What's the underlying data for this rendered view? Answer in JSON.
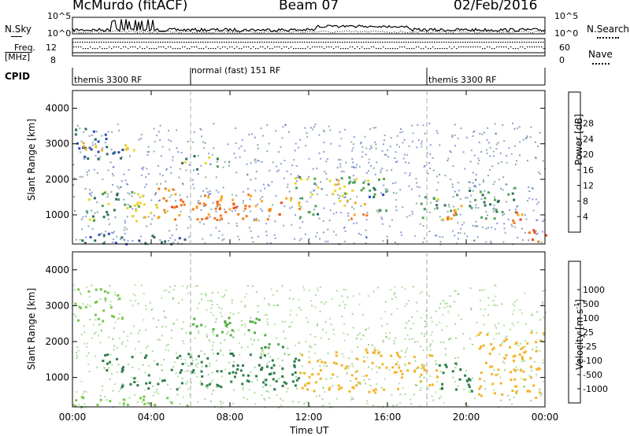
{
  "header": {
    "station": "McMurdo (fitACF)",
    "beam": "Beam 07",
    "date": "02/Feb/2016"
  },
  "params_panel": {
    "nsky_label": "N.Sky",
    "nsearch_label": "N.Search",
    "freq_label": "Freq.",
    "freq_unit": "[MHz]",
    "nave_label": "Nave",
    "cpid_label": "CPID",
    "left_ticks_top": [
      "10^5",
      "10^0"
    ],
    "right_ticks_top": [
      "10^5",
      "10^0"
    ],
    "left_ticks_freq": [
      "12",
      "8"
    ],
    "right_ticks_nave": [
      "60",
      "0"
    ],
    "cpid_segments": [
      {
        "name": "themis 3300 RF",
        "start_hour": 0,
        "end_hour": 6
      },
      {
        "name": "normal (fast) 151 RF",
        "start_hour": 6,
        "end_hour": 18
      },
      {
        "name": "themis 3300 RF",
        "start_hour": 18,
        "end_hour": 24
      }
    ]
  },
  "x_axis": {
    "title": "Time UT",
    "tick_labels": [
      "00:00",
      "04:00",
      "08:00",
      "12:00",
      "16:00",
      "20:00",
      "00:00"
    ],
    "tick_hours": [
      0,
      4,
      8,
      12,
      16,
      20,
      24
    ]
  },
  "y_axis": {
    "title": "Slant Range [km]",
    "tick_labels": [
      "1000",
      "2000",
      "3000",
      "4000"
    ],
    "tick_values": [
      1000,
      2000,
      3000,
      4000
    ],
    "range": [
      180,
      4500
    ]
  },
  "power_colorbar": {
    "title": "Power [dB]",
    "tick_labels": [
      "4",
      "8",
      "12",
      "16",
      "20",
      "24",
      "28"
    ],
    "colors": [
      "#1c28e6",
      "#2c4bb5",
      "#2d6e5c",
      "#52a25a",
      "#e8d62a",
      "#f6a826",
      "#f17a1e",
      "#ef4a16",
      "#e11b10"
    ]
  },
  "velocity_colorbar": {
    "title": "Velocity [m s",
    "title_sup": "-1",
    "title_end": "]",
    "tick_labels": [
      "1000",
      "500",
      "100",
      "25",
      "-25",
      "-100",
      "-500",
      "-1000"
    ],
    "colors": [
      "#1f3fbf",
      "#2f5db0",
      "#2e7d4a",
      "#55b047",
      "#79c84a",
      "#bdbdbd",
      "#f2b52a",
      "#f28a1e",
      "#ef5d16",
      "#e51d14"
    ]
  },
  "chart_data": [
    {
      "type": "heatmap",
      "panel": "power",
      "x_range_hours": [
        0,
        24
      ],
      "y_range_km": [
        180,
        4500
      ],
      "regions": [
        {
          "x": [
            0.0,
            6.0
          ],
          "y": [
            200,
            500
          ],
          "value": 8
        },
        {
          "x": [
            0.5,
            3.5
          ],
          "y": [
            800,
            1700
          ],
          "value": 14
        },
        {
          "x": [
            3.2,
            4.8
          ],
          "y": [
            900,
            1600
          ],
          "value": 20
        },
        {
          "x": [
            4.3,
            6.0
          ],
          "y": [
            900,
            1800
          ],
          "value": 26
        },
        {
          "x": [
            6.0,
            9.5
          ],
          "y": [
            800,
            1600
          ],
          "value": 24
        },
        {
          "x": [
            6.5,
            9.0
          ],
          "y": [
            900,
            1400
          ],
          "value": 28
        },
        {
          "x": [
            9.5,
            10.8
          ],
          "y": [
            900,
            1500
          ],
          "value": 26
        },
        {
          "x": [
            10.8,
            11.5
          ],
          "y": [
            1200,
            1600
          ],
          "value": 22
        },
        {
          "x": [
            11.5,
            12.5
          ],
          "y": [
            900,
            1500
          ],
          "value": 12
        },
        {
          "x": [
            12.8,
            14.0
          ],
          "y": [
            1200,
            2000
          ],
          "value": 18
        },
        {
          "x": [
            14.0,
            15.0
          ],
          "y": [
            900,
            1400
          ],
          "value": 24
        },
        {
          "x": [
            15.0,
            16.0
          ],
          "y": [
            1100,
            1800
          ],
          "value": 10
        },
        {
          "x": [
            0.0,
            2.5
          ],
          "y": [
            2600,
            3500
          ],
          "value": 8
        },
        {
          "x": [
            0.5,
            1.8
          ],
          "y": [
            2800,
            3100
          ],
          "value": 22
        },
        {
          "x": [
            2.6,
            3.1
          ],
          "y": [
            2800,
            3000
          ],
          "value": 18
        },
        {
          "x": [
            5.4,
            7.5
          ],
          "y": [
            2300,
            2700
          ],
          "value": 14
        },
        {
          "x": [
            11.0,
            16.5
          ],
          "y": [
            1600,
            2100
          ],
          "value": 14
        },
        {
          "x": [
            17.5,
            19.5
          ],
          "y": [
            900,
            1600
          ],
          "value": 14
        },
        {
          "x": [
            18.5,
            20.0
          ],
          "y": [
            900,
            1300
          ],
          "value": 24
        },
        {
          "x": [
            20.0,
            22.5
          ],
          "y": [
            900,
            1800
          ],
          "value": 12
        },
        {
          "x": [
            22.3,
            22.8
          ],
          "y": [
            700,
            1400
          ],
          "value": 26
        },
        {
          "x": [
            23.0,
            24.0
          ],
          "y": [
            250,
            700
          ],
          "value": 28
        }
      ]
    },
    {
      "type": "heatmap",
      "panel": "velocity",
      "x_range_hours": [
        0,
        24
      ],
      "y_range_km": [
        180,
        4500
      ],
      "regions": [
        {
          "x": [
            0.0,
            6.0
          ],
          "y": [
            200,
            500
          ],
          "value": 0
        },
        {
          "x": [
            0.0,
            2.5
          ],
          "y": [
            2600,
            3500
          ],
          "value": 10
        },
        {
          "x": [
            1.5,
            11.5
          ],
          "y": [
            700,
            1700
          ],
          "value": 200
        },
        {
          "x": [
            5.5,
            9.8
          ],
          "y": [
            2200,
            2700
          ],
          "value": 50
        },
        {
          "x": [
            9.5,
            11.0
          ],
          "y": [
            1800,
            2100
          ],
          "value": 80
        },
        {
          "x": [
            11.5,
            13.0
          ],
          "y": [
            500,
            1700
          ],
          "value": -150
        },
        {
          "x": [
            13.0,
            17.0
          ],
          "y": [
            600,
            1800
          ],
          "value": -200
        },
        {
          "x": [
            17.0,
            18.5
          ],
          "y": [
            700,
            1700
          ],
          "value": -300
        },
        {
          "x": [
            18.5,
            20.5
          ],
          "y": [
            600,
            1500
          ],
          "value": 200
        },
        {
          "x": [
            20.5,
            24.0
          ],
          "y": [
            400,
            2300
          ],
          "value": -250
        }
      ]
    }
  ]
}
